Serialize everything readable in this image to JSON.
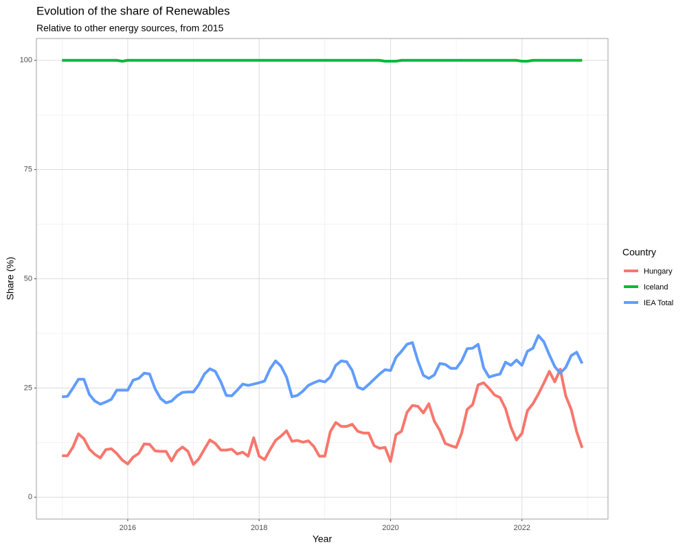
{
  "chart_data": {
    "type": "line",
    "title": "Evolution of the share of Renewables",
    "subtitle": "Relative to other energy sources, from 2015",
    "xlabel": "Year",
    "ylabel": "Share (%)",
    "legend_title": "Country",
    "legend_position": "right",
    "grid": true,
    "xlim": [
      2014.61,
      2023.31
    ],
    "xticks": [
      2016,
      2018,
      2020,
      2022
    ],
    "ylim": [
      -5,
      105
    ],
    "yticks": [
      0,
      25,
      50,
      75,
      100
    ],
    "x": [
      2015,
      2015.083,
      2015.167,
      2015.25,
      2015.333,
      2015.417,
      2015.5,
      2015.583,
      2015.667,
      2015.75,
      2015.833,
      2015.917,
      2016,
      2016.083,
      2016.167,
      2016.25,
      2016.333,
      2016.417,
      2016.5,
      2016.583,
      2016.667,
      2016.75,
      2016.833,
      2016.917,
      2017,
      2017.083,
      2017.167,
      2017.25,
      2017.333,
      2017.417,
      2017.5,
      2017.583,
      2017.667,
      2017.75,
      2017.833,
      2017.917,
      2018,
      2018.083,
      2018.167,
      2018.25,
      2018.333,
      2018.417,
      2018.5,
      2018.583,
      2018.667,
      2018.75,
      2018.833,
      2018.917,
      2019,
      2019.083,
      2019.167,
      2019.25,
      2019.333,
      2019.417,
      2019.5,
      2019.583,
      2019.667,
      2019.75,
      2019.833,
      2019.917,
      2020,
      2020.083,
      2020.167,
      2020.25,
      2020.333,
      2020.417,
      2020.5,
      2020.583,
      2020.667,
      2020.75,
      2020.833,
      2020.917,
      2021,
      2021.083,
      2021.167,
      2021.25,
      2021.333,
      2021.417,
      2021.5,
      2021.583,
      2021.667,
      2021.75,
      2021.833,
      2021.917,
      2022,
      2022.083,
      2022.167,
      2022.25,
      2022.333,
      2022.417,
      2022.5,
      2022.583,
      2022.667,
      2022.75,
      2022.833,
      2022.917
    ],
    "series": [
      {
        "name": "Hungary",
        "color": "#F8766D",
        "values": [
          9.5,
          9.5,
          11.5,
          14.5,
          13.4,
          11,
          9.8,
          9,
          10.9,
          11.1,
          10,
          8.5,
          7.6,
          9.2,
          10,
          12.2,
          12.1,
          10.6,
          10.5,
          10.5,
          8.3,
          10.5,
          11.5,
          10.5,
          7.5,
          8.8,
          11,
          13.1,
          12.3,
          10.8,
          10.8,
          11,
          9.9,
          10.3,
          9.4,
          13.6,
          9.4,
          8.6,
          10.9,
          13,
          14,
          15.2,
          12.8,
          13,
          12.6,
          12.9,
          11.6,
          9.4,
          9.4,
          15,
          17.1,
          16.2,
          16.2,
          16.7,
          15.1,
          14.7,
          14.7,
          11.8,
          11.2,
          11.4,
          8.2,
          14.3,
          15.1,
          19.4,
          21,
          20.8,
          19.3,
          21.4,
          17.4,
          15.3,
          12.3,
          11.8,
          11.4,
          14.7,
          20.1,
          21.2,
          25.7,
          26.2,
          24.9,
          23.4,
          22.8,
          20.3,
          16,
          13.1,
          14.6,
          19.8,
          21.4,
          23.6,
          26.1,
          28.8,
          26.4,
          29.3,
          23.2,
          20.1,
          15,
          11.3
        ]
      },
      {
        "name": "Iceland",
        "color": "#00BA38",
        "values": [
          100,
          100,
          100,
          100,
          100,
          100,
          100,
          100,
          100,
          100,
          100,
          99.8,
          100,
          100,
          100,
          100,
          100,
          100,
          100,
          100,
          100,
          100,
          100,
          100,
          100,
          100,
          100,
          100,
          100,
          100,
          100,
          100,
          100,
          100,
          100,
          100,
          100,
          100,
          100,
          100,
          100,
          100,
          100,
          100,
          100,
          100,
          100,
          100,
          100,
          100,
          100,
          100,
          100,
          100,
          100,
          100,
          100,
          100,
          100,
          99.8,
          99.8,
          99.8,
          100,
          100,
          100,
          100,
          100,
          100,
          100,
          100,
          100,
          100,
          100,
          100,
          100,
          100,
          100,
          100,
          100,
          100,
          100,
          100,
          100,
          100,
          99.8,
          99.8,
          100,
          100,
          100,
          100,
          100,
          100,
          100,
          100,
          100,
          100
        ]
      },
      {
        "name": "IEA Total",
        "color": "#619CFF",
        "values": [
          23,
          23.1,
          25,
          27,
          27,
          23.5,
          22,
          21.3,
          21.8,
          22.4,
          24.5,
          24.5,
          24.5,
          26.8,
          27.2,
          28.4,
          28.2,
          24.8,
          22.6,
          21.6,
          22,
          23.2,
          24,
          24.1,
          24.1,
          25.8,
          28.2,
          29.4,
          28.8,
          26.4,
          23.3,
          23.2,
          24.5,
          25.9,
          25.6,
          25.9,
          26.2,
          26.6,
          29.4,
          31.2,
          30,
          27.5,
          23,
          23.3,
          24.3,
          25.6,
          26.2,
          26.7,
          26.4,
          27.5,
          30.2,
          31.2,
          31,
          29,
          25.2,
          24.7,
          25.8,
          27,
          28.2,
          29.2,
          29,
          32,
          33.4,
          35,
          35.4,
          31.2,
          27.9,
          27.2,
          28,
          30.6,
          30.4,
          29.5,
          29.5,
          31.2,
          34,
          34.1,
          35,
          29.6,
          27.5,
          27.9,
          28.2,
          30.9,
          30.2,
          31.4,
          30.2,
          33.4,
          34.1,
          37,
          35.6,
          32.6,
          29.9,
          28.4,
          29.7,
          32.4,
          33.2,
          30.6
        ]
      }
    ]
  }
}
